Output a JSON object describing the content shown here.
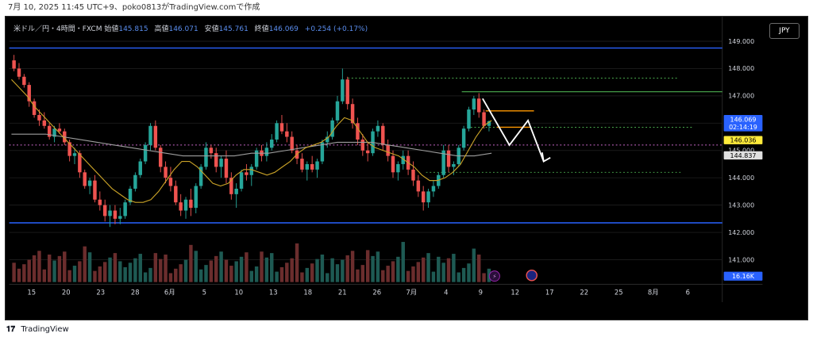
{
  "header": {
    "caption": "7月 10, 2025 11:45 UTC+9、poko0813がTradingView.comで作成"
  },
  "legend": {
    "symbol": "米ドル／円・4時間・FXCM",
    "open_label": "始値",
    "open": "145.815",
    "high_label": "高値",
    "high": "146.071",
    "low_label": "安値",
    "low": "145.761",
    "close_label": "終値",
    "close": "146.069",
    "change": "+0.254 (+0.17%)"
  },
  "currency_button": "JPY",
  "footer": {
    "brand": "TradingView"
  },
  "colors": {
    "up": "#26a69a",
    "down": "#ef5350",
    "ma_fast": "#c9a227",
    "ma_slow": "#9e9e9e",
    "hline": "#2962ff",
    "green_dash": "#4caf50",
    "orange": "#ff9800",
    "pink_dash": "#d16bd1"
  },
  "chart_data": {
    "type": "candlestick",
    "title": "",
    "y_axis": {
      "ticks": [
        "149.000",
        "148.000",
        "147.000",
        "146.000",
        "145.000",
        "144.000",
        "143.000",
        "142.000",
        "141.000"
      ],
      "range": [
        140.1,
        149.9
      ]
    },
    "x_axis": {
      "ticks": [
        "15",
        "20",
        "23",
        "28",
        "6月",
        "5",
        "10",
        "13",
        "18",
        "21",
        "26",
        "7月",
        "4",
        "9",
        "12",
        "17",
        "22",
        "25",
        "8月",
        "6"
      ]
    },
    "price_labels": [
      {
        "value": "146.069",
        "sub": "02:14:19",
        "color": "#2962ff",
        "text_color": "#ffffff"
      },
      {
        "value": "146.036",
        "color": "#ffeb3b",
        "text_color": "#000000"
      },
      {
        "value": "144.837",
        "color": "#e0e0e0",
        "text_color": "#000000"
      },
      {
        "value": "16.16K",
        "color": "#2962ff",
        "text_color": "#ffffff"
      }
    ],
    "horizontal_lines": [
      {
        "price": 148.75,
        "style": "solid",
        "color": "#2962ff"
      },
      {
        "price": 142.35,
        "style": "solid",
        "color": "#2962ff"
      },
      {
        "price": 147.15,
        "style": "solid",
        "color": "#4caf50"
      }
    ],
    "dashed_levels": [
      {
        "price": 147.65,
        "color": "#4caf50"
      },
      {
        "price": 145.85,
        "color": "#4caf50"
      },
      {
        "price": 144.2,
        "color": "#4caf50"
      },
      {
        "price": 145.2,
        "color": "#d16bd1"
      }
    ],
    "candles": [
      [
        148.3,
        148.5,
        147.9,
        148.0
      ],
      [
        148.0,
        148.2,
        147.6,
        147.7
      ],
      [
        147.7,
        147.8,
        147.3,
        147.4
      ],
      [
        147.4,
        147.5,
        146.6,
        146.8
      ],
      [
        146.8,
        146.9,
        146.2,
        146.3
      ],
      [
        146.3,
        146.5,
        145.9,
        146.1
      ],
      [
        146.1,
        146.4,
        145.8,
        145.9
      ],
      [
        145.9,
        146.0,
        145.4,
        145.5
      ],
      [
        145.5,
        145.9,
        145.3,
        145.8
      ],
      [
        145.8,
        146.0,
        145.6,
        145.7
      ],
      [
        145.7,
        145.8,
        145.2,
        145.3
      ],
      [
        145.3,
        145.4,
        144.6,
        144.8
      ],
      [
        144.8,
        145.1,
        144.5,
        144.9
      ],
      [
        144.9,
        145.0,
        144.0,
        144.2
      ],
      [
        144.2,
        144.3,
        143.6,
        143.7
      ],
      [
        143.7,
        144.0,
        143.4,
        143.9
      ],
      [
        143.9,
        144.1,
        143.1,
        143.2
      ],
      [
        143.2,
        143.5,
        142.8,
        143.0
      ],
      [
        143.0,
        143.2,
        142.4,
        142.6
      ],
      [
        142.6,
        143.0,
        142.2,
        142.8
      ],
      [
        142.8,
        143.0,
        142.3,
        142.5
      ],
      [
        142.5,
        142.9,
        142.3,
        142.6
      ],
      [
        142.6,
        143.2,
        142.5,
        143.1
      ],
      [
        143.1,
        143.7,
        143.0,
        143.6
      ],
      [
        143.6,
        144.2,
        143.5,
        144.1
      ],
      [
        144.1,
        144.7,
        144.0,
        144.6
      ],
      [
        144.6,
        145.3,
        144.5,
        145.2
      ],
      [
        145.2,
        146.0,
        145.0,
        145.9
      ],
      [
        145.9,
        146.1,
        145.0,
        145.1
      ],
      [
        145.1,
        145.2,
        144.2,
        144.4
      ],
      [
        144.4,
        144.6,
        143.8,
        144.0
      ],
      [
        144.0,
        144.4,
        143.5,
        143.7
      ],
      [
        143.7,
        143.9,
        143.0,
        143.1
      ],
      [
        143.1,
        143.4,
        142.6,
        142.8
      ],
      [
        142.8,
        143.3,
        142.5,
        143.2
      ],
      [
        143.2,
        143.6,
        142.6,
        142.9
      ],
      [
        142.9,
        143.8,
        142.7,
        143.7
      ],
      [
        143.7,
        144.5,
        143.6,
        144.4
      ],
      [
        144.4,
        145.3,
        144.3,
        145.1
      ],
      [
        145.1,
        145.2,
        144.7,
        144.9
      ],
      [
        144.9,
        145.1,
        144.2,
        144.4
      ],
      [
        144.4,
        144.8,
        144.0,
        144.7
      ],
      [
        144.7,
        145.0,
        143.8,
        144.0
      ],
      [
        144.0,
        144.2,
        143.2,
        143.4
      ],
      [
        143.4,
        143.8,
        142.9,
        143.6
      ],
      [
        143.6,
        144.3,
        143.5,
        144.2
      ],
      [
        144.2,
        144.5,
        143.9,
        144.1
      ],
      [
        144.1,
        144.5,
        143.7,
        144.4
      ],
      [
        144.4,
        145.1,
        144.3,
        145.0
      ],
      [
        145.0,
        145.2,
        144.6,
        144.8
      ],
      [
        144.8,
        145.3,
        144.6,
        145.1
      ],
      [
        145.1,
        145.6,
        145.0,
        145.4
      ],
      [
        145.4,
        146.1,
        145.3,
        146.0
      ],
      [
        146.0,
        146.3,
        145.6,
        145.7
      ],
      [
        145.7,
        146.0,
        145.3,
        145.5
      ],
      [
        145.5,
        145.7,
        144.9,
        145.0
      ],
      [
        145.0,
        145.2,
        144.5,
        144.7
      ],
      [
        144.7,
        144.9,
        144.2,
        144.3
      ],
      [
        144.3,
        144.6,
        143.9,
        144.5
      ],
      [
        144.5,
        144.8,
        144.2,
        144.3
      ],
      [
        144.3,
        144.7,
        144.0,
        144.6
      ],
      [
        144.6,
        145.4,
        144.5,
        145.3
      ],
      [
        145.3,
        145.7,
        145.1,
        145.5
      ],
      [
        145.5,
        146.2,
        145.4,
        146.1
      ],
      [
        146.1,
        147.0,
        146.0,
        146.8
      ],
      [
        146.8,
        148.0,
        146.7,
        147.6
      ],
      [
        147.6,
        147.7,
        146.5,
        146.7
      ],
      [
        146.7,
        146.9,
        145.8,
        146.0
      ],
      [
        146.0,
        146.2,
        145.2,
        145.4
      ],
      [
        145.4,
        145.6,
        144.8,
        145.0
      ],
      [
        145.0,
        145.3,
        144.6,
        144.9
      ],
      [
        144.9,
        145.8,
        144.8,
        145.7
      ],
      [
        145.7,
        146.1,
        145.5,
        145.9
      ],
      [
        145.9,
        146.0,
        145.0,
        145.2
      ],
      [
        145.2,
        145.4,
        144.6,
        144.8
      ],
      [
        144.8,
        145.0,
        144.0,
        144.2
      ],
      [
        144.2,
        144.6,
        143.9,
        144.5
      ],
      [
        144.5,
        145.0,
        144.3,
        144.8
      ],
      [
        144.8,
        145.0,
        144.1,
        144.3
      ],
      [
        144.3,
        144.6,
        143.7,
        143.9
      ],
      [
        143.9,
        144.1,
        143.3,
        143.5
      ],
      [
        143.5,
        143.7,
        142.8,
        143.1
      ],
      [
        143.1,
        143.6,
        142.9,
        143.5
      ],
      [
        143.5,
        143.9,
        143.3,
        143.7
      ],
      [
        143.7,
        144.2,
        143.6,
        144.1
      ],
      [
        144.1,
        145.2,
        144.0,
        145.0
      ],
      [
        145.0,
        145.2,
        144.2,
        144.4
      ],
      [
        144.4,
        144.6,
        144.1,
        144.5
      ],
      [
        144.5,
        145.2,
        144.4,
        145.1
      ],
      [
        145.1,
        145.9,
        145.0,
        145.8
      ],
      [
        145.8,
        146.6,
        145.7,
        146.5
      ],
      [
        146.5,
        147.0,
        146.3,
        146.9
      ],
      [
        146.9,
        147.1,
        146.2,
        146.4
      ],
      [
        146.4,
        146.5,
        145.8,
        145.9
      ],
      [
        145.9,
        146.1,
        145.7,
        146.07
      ]
    ],
    "ma_fast": [
      147.6,
      147.3,
      147.0,
      146.6,
      146.3,
      146.0,
      145.7,
      145.4,
      145.1,
      144.8,
      144.5,
      144.2,
      143.9,
      143.6,
      143.4,
      143.2,
      143.1,
      143.1,
      143.2,
      143.5,
      143.9,
      144.3,
      144.6,
      144.6,
      144.4,
      144.1,
      143.8,
      143.7,
      143.8,
      144.1,
      144.3,
      144.3,
      144.2,
      144.1,
      144.2,
      144.4,
      144.6,
      144.9,
      145.1,
      145.2,
      145.3,
      145.5,
      145.9,
      146.2,
      146.1,
      145.7,
      145.3,
      145.1,
      145.0,
      144.9,
      144.8,
      144.6,
      144.4,
      144.1,
      143.9,
      143.9,
      144.0,
      144.2,
      144.5,
      145.0,
      145.5,
      145.9,
      146.1
    ],
    "ma_slow": [
      145.6,
      145.6,
      145.6,
      145.5,
      145.4,
      145.3,
      145.2,
      145.1,
      145.0,
      144.9,
      144.8,
      144.8,
      144.8,
      144.8,
      144.9,
      144.9,
      145.0,
      145.1,
      145.2,
      145.3,
      145.3,
      145.3,
      145.2,
      145.1,
      145.0,
      144.9,
      144.8,
      144.8,
      144.9
    ]
  }
}
